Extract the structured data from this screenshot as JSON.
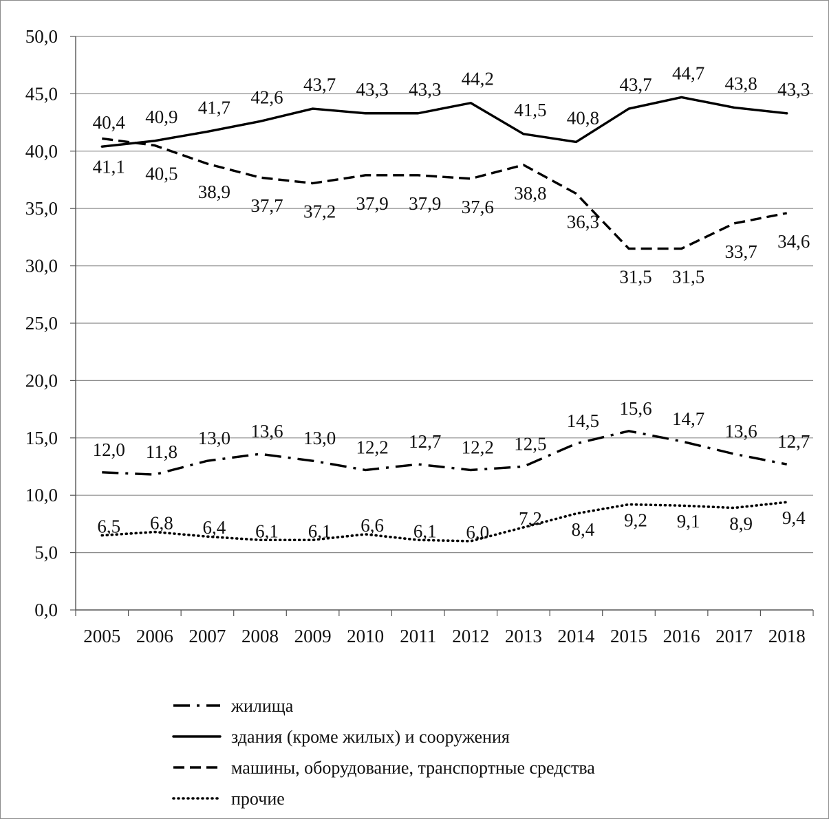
{
  "chart_data": {
    "type": "line",
    "title": "",
    "xlabel": "",
    "ylabel": "",
    "categories": [
      "2005",
      "2006",
      "2007",
      "2008",
      "2009",
      "2010",
      "2011",
      "2012",
      "2013",
      "2014",
      "2015",
      "2016",
      "2017",
      "2018"
    ],
    "y_ticks": [
      "0,0",
      "5,0",
      "10,0",
      "15,0",
      "20,0",
      "25,0",
      "30,0",
      "35,0",
      "40,0",
      "45,0",
      "50,0"
    ],
    "ylim": [
      0,
      50
    ],
    "grid": true,
    "legend_position": "bottom",
    "series": [
      {
        "name": "жилища",
        "style": "dash-dot",
        "values": [
          12.0,
          11.8,
          13.0,
          13.6,
          13.0,
          12.2,
          12.7,
          12.2,
          12.5,
          14.5,
          15.6,
          14.7,
          13.6,
          12.7
        ],
        "labels": [
          "12,0",
          "11,8",
          "13,0",
          "13,6",
          "13,0",
          "12,2",
          "12,7",
          "12,2",
          "12,5",
          "14,5",
          "15,6",
          "14,7",
          "13,6",
          "12,7"
        ]
      },
      {
        "name": "здания (кроме жилых) и сооружения",
        "style": "solid",
        "values": [
          40.4,
          40.9,
          41.7,
          42.6,
          43.7,
          43.3,
          43.3,
          44.2,
          41.5,
          40.8,
          43.7,
          44.7,
          43.8,
          43.3
        ],
        "labels": [
          "40,4",
          "40,9",
          "41,7",
          "42,6",
          "43,7",
          "43,3",
          "43,3",
          "44,2",
          "41,5",
          "40,8",
          "43,7",
          "44,7",
          "43,8",
          "43,3"
        ]
      },
      {
        "name": "машины, оборудование, транспортные средства",
        "style": "dashed",
        "values": [
          41.1,
          40.5,
          38.9,
          37.7,
          37.2,
          37.9,
          37.9,
          37.6,
          38.8,
          36.3,
          31.5,
          31.5,
          33.7,
          34.6
        ],
        "labels": [
          "41,1",
          "40,5",
          "38,9",
          "37,7",
          "37,2",
          "37,9",
          "37,9",
          "37,6",
          "38,8",
          "36,3",
          "31,5",
          "31,5",
          "33,7",
          "34,6"
        ]
      },
      {
        "name": "прочие",
        "style": "dotted",
        "values": [
          6.5,
          6.8,
          6.4,
          6.1,
          6.1,
          6.6,
          6.1,
          6.0,
          7.2,
          8.4,
          9.2,
          9.1,
          8.9,
          9.4
        ],
        "labels": [
          "6,5",
          "6,8",
          "6,4",
          "6,1",
          "6,1",
          "6,6",
          "6,1",
          "6,0",
          "7,2",
          "8,4",
          "9,2",
          "9,1",
          "8,9",
          "9,4"
        ]
      }
    ]
  }
}
